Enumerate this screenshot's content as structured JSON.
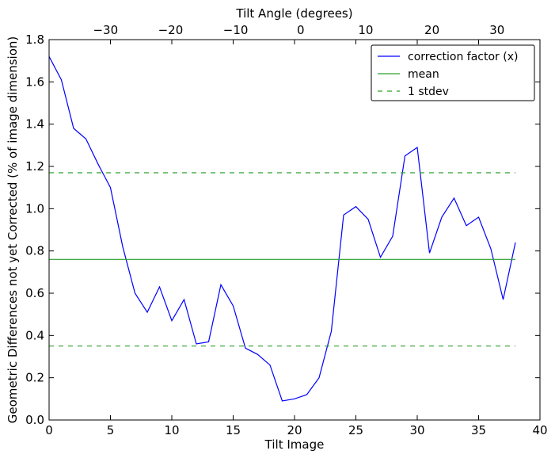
{
  "chart_data": {
    "type": "line",
    "xlabel": "Tilt Image",
    "ylabel": "Geometric Differences not yet Corrected (% of image dimension)",
    "top_xlabel": "Tilt Angle (degrees)",
    "xlim": [
      0,
      40
    ],
    "ylim": [
      0,
      1.8
    ],
    "xticks": [
      0,
      5,
      10,
      15,
      20,
      25,
      30,
      35,
      40
    ],
    "xtick_labels": [
      "0",
      "5",
      "10",
      "15",
      "20",
      "25",
      "30",
      "35",
      "40"
    ],
    "yticks": [
      0,
      0.2,
      0.4,
      0.6,
      0.8,
      1.0,
      1.2,
      1.4,
      1.6,
      1.8
    ],
    "ytick_labels": [
      "0.0",
      "0.2",
      "0.4",
      "0.6",
      "0.8",
      "1.0",
      "1.2",
      "1.4",
      "1.6",
      "1.8"
    ],
    "top_ticks": [
      {
        "label": "−30",
        "x": 4.6
      },
      {
        "label": "−20",
        "x": 9.9
      },
      {
        "label": "−10",
        "x": 15.2
      },
      {
        "label": "0",
        "x": 20.5
      },
      {
        "label": "10",
        "x": 25.8
      },
      {
        "label": "20",
        "x": 31.2
      },
      {
        "label": "30",
        "x": 36.5
      }
    ],
    "series": [
      {
        "name": "correction factor (x)",
        "color": "#0000ff",
        "style": "solid",
        "x": [
          0,
          1,
          2,
          3,
          4,
          5,
          6,
          7,
          8,
          9,
          10,
          11,
          12,
          13,
          14,
          15,
          16,
          17,
          18,
          19,
          20,
          21,
          22,
          23,
          24,
          25,
          26,
          27,
          28,
          29,
          30,
          31,
          32,
          33,
          34,
          35,
          36,
          37,
          38
        ],
        "y": [
          1.72,
          1.61,
          1.38,
          1.33,
          1.21,
          1.1,
          0.82,
          0.6,
          0.51,
          0.63,
          0.47,
          0.57,
          0.36,
          0.37,
          0.64,
          0.54,
          0.34,
          0.31,
          0.26,
          0.09,
          0.1,
          0.12,
          0.2,
          0.42,
          0.97,
          1.01,
          0.95,
          0.77,
          0.87,
          1.25,
          1.29,
          0.79,
          0.96,
          1.05,
          0.92,
          0.96,
          0.81,
          0.57,
          0.84
        ]
      },
      {
        "name": "mean",
        "color": "#2ca02c",
        "style": "solid",
        "x": [
          0,
          38
        ],
        "y": [
          0.76,
          0.76
        ]
      },
      {
        "name": "1 stdev",
        "color": "#2ca02c",
        "style": "dashed",
        "x": [
          0,
          38
        ],
        "y": [
          1.17,
          1.17
        ]
      },
      {
        "name": "",
        "color": "#2ca02c",
        "style": "dashed",
        "x": [
          0,
          38
        ],
        "y": [
          0.35,
          0.35
        ]
      }
    ],
    "legend": {
      "placement": "top-right",
      "entries": [
        "correction factor (x)",
        "mean",
        "1 stdev"
      ]
    },
    "grid": false
  }
}
